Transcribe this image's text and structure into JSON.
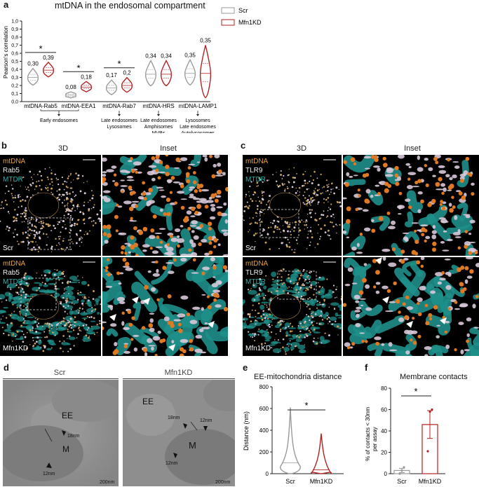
{
  "panel_a": {
    "letter": "a",
    "title": "mtDNA in the endosomal compartment",
    "ylabel": "Pearson's correlation",
    "yticks": [
      "0,0",
      "0,1",
      "0,2",
      "0,3",
      "0,4",
      "0,5",
      "0,6",
      "0,7",
      "0,8",
      "0,9",
      "1,0"
    ],
    "legend": [
      "Scr",
      "Mfn1KD"
    ],
    "groups": [
      {
        "label": "mtDNA-Rab5",
        "scr_value": "0,30",
        "kd_value": "0,39",
        "sig": "*",
        "annotation": ""
      },
      {
        "label": "mtDNA-EEA1",
        "scr_value": "0,08",
        "kd_value": "0,18",
        "sig": "*",
        "annotation": "Early endosomes"
      },
      {
        "label": "mtDNA-Rab7",
        "scr_value": "0,17",
        "kd_value": "0,2",
        "sig": "*",
        "annotation": "Late endosomes\nLysosomes"
      },
      {
        "label": "mtDNA-HRS",
        "scr_value": "0,34",
        "kd_value": "0,34",
        "sig": "",
        "annotation": "Late endosomes\nAmphisomes\nMVBs"
      },
      {
        "label": "mtDNA-LAMP1",
        "scr_value": "0,35",
        "kd_value": "0,35",
        "sig": "",
        "annotation": "Lysosomes\nLate endosomes\nAutolysosomes"
      }
    ],
    "colors": {
      "scr": "#9a9a9a",
      "kd": "#b22222"
    }
  },
  "panel_b": {
    "letter": "b",
    "col_3d": "3D",
    "col_inset": "Inset",
    "channels_top": [
      "mtDNA",
      "Rab5",
      "MTDR"
    ],
    "channels_bottom": [
      "mtDNA",
      "Rab5",
      "MTDR"
    ],
    "cond_top": "Scr",
    "cond_bottom": "Mfn1KD"
  },
  "panel_c": {
    "letter": "c",
    "col_3d": "3D",
    "col_inset": "Inset",
    "channels_top": [
      "mtDNA",
      "TLR9",
      "MTDR"
    ],
    "channels_bottom": [
      "mtDNA",
      "TLR9",
      "MTDR"
    ],
    "cond_top": "Scr",
    "cond_bottom": "Mfn1KD"
  },
  "panel_d": {
    "letter": "d",
    "left_title": "Scr",
    "right_title": "Mfn1KD",
    "left_labels": {
      "ee": "EE",
      "m": "M",
      "d1": "18nm",
      "d2": "12nm",
      "scale": "200nm"
    },
    "right_labels": {
      "ee": "EE",
      "m": "M",
      "d1": "18nm",
      "d2": "12nm",
      "d3": "12nm",
      "scale": "200nm"
    }
  },
  "panel_e": {
    "letter": "e",
    "title": "EE-mitochondria distance",
    "ylabel": "Distance (nm)",
    "yticks": [
      "0",
      "200",
      "400",
      "600",
      "800"
    ],
    "categories": [
      "Scr",
      "Mfn1KD"
    ],
    "sig": "*"
  },
  "panel_f": {
    "letter": "f",
    "title": "Membrane contacts",
    "ylabel": "% of contacts < 30nm\nper assay",
    "yticks": [
      "0",
      "20",
      "40",
      "60",
      "80"
    ],
    "categories": [
      "Scr",
      "Mfn1KD"
    ],
    "sig": "*"
  },
  "chart_data": [
    {
      "type": "violin",
      "title": "mtDNA in the endosomal compartment",
      "ylabel": "Pearson's correlation",
      "ylim": [
        0,
        1.0
      ],
      "categories": [
        "mtDNA-Rab5",
        "mtDNA-EEA1",
        "mtDNA-Rab7",
        "mtDNA-HRS",
        "mtDNA-LAMP1"
      ],
      "series": [
        {
          "name": "Scr",
          "values": [
            0.3,
            0.08,
            0.17,
            0.34,
            0.35
          ]
        },
        {
          "name": "Mfn1KD",
          "values": [
            0.39,
            0.18,
            0.2,
            0.34,
            0.35
          ]
        }
      ]
    },
    {
      "type": "violin",
      "title": "EE-mitochondria distance",
      "ylabel": "Distance (nm)",
      "ylim": [
        0,
        800
      ],
      "categories": [
        "Scr",
        "Mfn1KD"
      ],
      "series": [
        {
          "name": "Scr",
          "median": 100,
          "max": 610
        },
        {
          "name": "Mfn1KD",
          "median": 35,
          "max": 370
        }
      ]
    },
    {
      "type": "bar",
      "title": "Membrane contacts",
      "ylabel": "% of contacts < 30nm per assay",
      "ylim": [
        0,
        80
      ],
      "categories": [
        "Scr",
        "Mfn1KD"
      ],
      "values": [
        3,
        46
      ],
      "errors": [
        2,
        13
      ],
      "points": [
        [
          0,
          3,
          6
        ],
        [
          21,
          58,
          60
        ]
      ]
    }
  ]
}
